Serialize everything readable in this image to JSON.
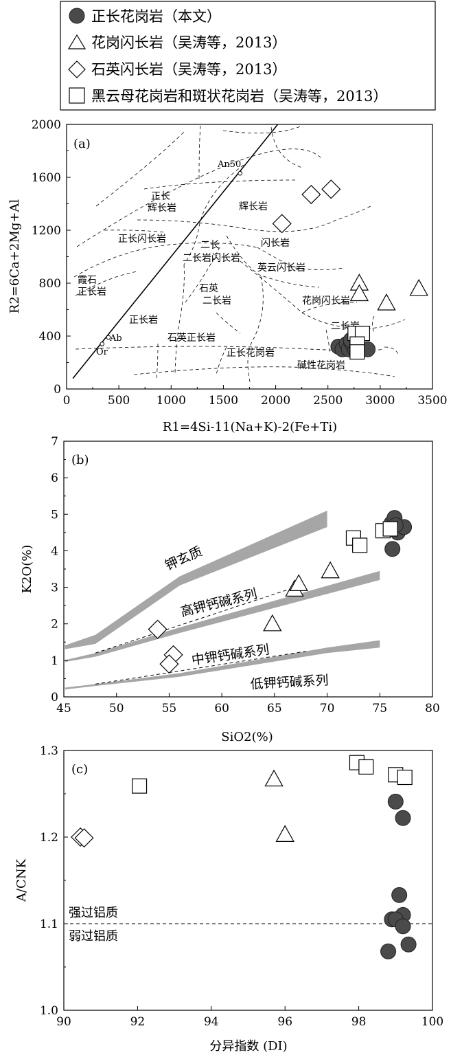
{
  "legend": {
    "items": [
      {
        "symbol": "circle",
        "label": "正长花岗岩（本文）"
      },
      {
        "symbol": "triangle",
        "label": "花岗闪长岩（吴涛等，2013）"
      },
      {
        "symbol": "diamond",
        "label": "石英闪长岩（吴涛等，2013）"
      },
      {
        "symbol": "square",
        "label": "黑云母花岗岩和斑状花岗岩（吴涛等，2013）"
      }
    ]
  },
  "colors": {
    "circle_fill": "#4a4a4a",
    "field_fill": "#a6a6a6",
    "axis": "#000000"
  },
  "chart_data": [
    {
      "panel": "(a)",
      "type": "scatter",
      "xlabel": "R1=4Si-11(Na+K)-2(Fe+Ti)",
      "ylabel": "R2=6Ca+2Mg+Al",
      "xlim": [
        0,
        3500
      ],
      "ylim": [
        0,
        2000
      ],
      "xticks": [
        "0",
        "500",
        "1000",
        "1500",
        "2000",
        "2500",
        "3000",
        "3500"
      ],
      "yticks": [
        "0",
        "400",
        "800",
        "1200",
        "1600",
        "2000"
      ],
      "field_labels": [
        "正长",
        "辉长岩",
        "辉长岩",
        "正长闪长岩",
        "闪长岩",
        "二长",
        "二长岩闪长岩",
        "英云闪长岩",
        "霞石",
        "正长岩",
        "石英",
        "二长岩",
        "花岗闪长岩",
        "二长岩",
        "正长岩",
        "石英正长岩",
        "正长花岗岩",
        "碱性花岗岩"
      ],
      "reference_labels": [
        "An50",
        "Ab",
        "Or"
      ],
      "series": [
        {
          "symbol": "circle",
          "points": [
            [
              2600,
              320
            ],
            [
              2640,
              300
            ],
            [
              2680,
              340
            ],
            [
              2700,
              300
            ],
            [
              2720,
              360
            ],
            [
              2740,
              330
            ],
            [
              2760,
              300
            ],
            [
              2780,
              320
            ],
            [
              2800,
              290
            ],
            [
              2880,
              300
            ],
            [
              2720,
              370
            ]
          ]
        },
        {
          "symbol": "triangle",
          "points": [
            [
              2800,
              800
            ],
            [
              2800,
              720
            ],
            [
              3060,
              650
            ],
            [
              3370,
              760
            ]
          ]
        },
        {
          "symbol": "diamond",
          "points": [
            [
              2060,
              1250
            ],
            [
              2340,
              1470
            ],
            [
              2530,
              1510
            ]
          ]
        },
        {
          "symbol": "square",
          "points": [
            [
              2760,
              420
            ],
            [
              2830,
              420
            ],
            [
              2780,
              340
            ],
            [
              2780,
              280
            ]
          ]
        }
      ]
    },
    {
      "panel": "(b)",
      "type": "scatter",
      "xlabel": "SiO2(%)",
      "ylabel": "K2O(%)",
      "xlim": [
        45,
        80
      ],
      "ylim": [
        0,
        7
      ],
      "xticks": [
        "45",
        "50",
        "55",
        "60",
        "65",
        "70",
        "75",
        "80"
      ],
      "yticks": [
        "0",
        "1",
        "2",
        "3",
        "4",
        "5",
        "6",
        "7"
      ],
      "field_labels": [
        "钾玄质",
        "高钾钙碱系列",
        "中钾钙碱系列",
        "低钾钙碱系列"
      ],
      "series": [
        {
          "symbol": "circle",
          "points": [
            [
              76.1,
              4.75
            ],
            [
              76.4,
              4.9
            ],
            [
              76.6,
              4.6
            ],
            [
              76.7,
              4.5
            ],
            [
              77.3,
              4.65
            ],
            [
              76.2,
              4.05
            ],
            [
              76.5,
              4.7
            ]
          ]
        },
        {
          "symbol": "triangle",
          "points": [
            [
              64.8,
              2.0
            ],
            [
              66.9,
              2.95
            ],
            [
              67.3,
              3.1
            ],
            [
              70.3,
              3.45
            ]
          ]
        },
        {
          "symbol": "diamond",
          "points": [
            [
              53.9,
              1.85
            ],
            [
              55.4,
              1.15
            ],
            [
              55.0,
              0.9
            ]
          ]
        },
        {
          "symbol": "square",
          "points": [
            [
              72.5,
              4.35
            ],
            [
              73.1,
              4.15
            ],
            [
              75.3,
              4.55
            ],
            [
              76.0,
              4.6
            ]
          ]
        }
      ]
    },
    {
      "panel": "(c)",
      "type": "scatter",
      "xlabel": "分异指数 (DI)",
      "ylabel": "A/CNK",
      "xlim": [
        90,
        100
      ],
      "ylim": [
        1.0,
        1.3
      ],
      "xticks": [
        "90",
        "92",
        "94",
        "96",
        "98",
        "100"
      ],
      "yticks": [
        "1.0",
        "1.1",
        "1.2",
        "1.3"
      ],
      "reference_line": {
        "y": 1.1,
        "label_above": "强过铝质",
        "label_below": "弱过铝质"
      },
      "series": [
        {
          "symbol": "circle",
          "points": [
            [
              99.0,
              1.241
            ],
            [
              99.2,
              1.222
            ],
            [
              99.1,
              1.133
            ],
            [
              99.2,
              1.11
            ],
            [
              98.9,
              1.105
            ],
            [
              99.0,
              1.105
            ],
            [
              99.2,
              1.097
            ],
            [
              99.35,
              1.076
            ],
            [
              98.8,
              1.068
            ]
          ]
        },
        {
          "symbol": "triangle",
          "points": [
            [
              95.7,
              1.267
            ],
            [
              96.0,
              1.203
            ]
          ]
        },
        {
          "symbol": "diamond",
          "points": [
            [
              90.45,
              1.2
            ],
            [
              90.55,
              1.199
            ]
          ]
        },
        {
          "symbol": "square",
          "points": [
            [
              92.05,
              1.259
            ],
            [
              97.95,
              1.286
            ],
            [
              98.2,
              1.281
            ],
            [
              99.0,
              1.272
            ],
            [
              99.25,
              1.269
            ]
          ]
        }
      ]
    }
  ]
}
